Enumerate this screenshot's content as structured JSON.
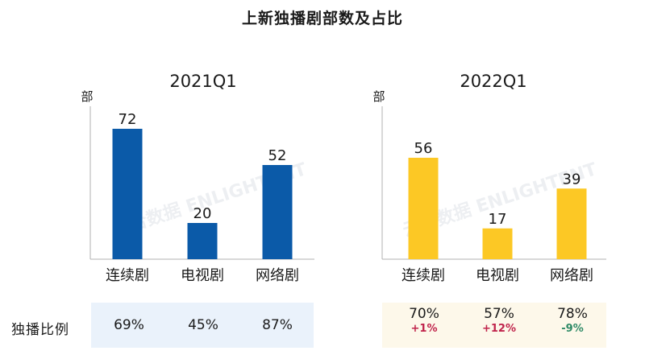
{
  "title": "上新独播剧部数及占比",
  "unit": "部",
  "ratio_label": "独播比例",
  "colors": {
    "q1_2021": "#0b5aa8",
    "q1_2022": "#fcc825",
    "positive": "#c0234b",
    "negative": "#2e8a66",
    "axis": "#b0b0b0"
  },
  "watermark": "云合数据 ENLIGHTENT",
  "chart_data": [
    {
      "type": "bar",
      "title": "2021Q1",
      "ylabel": "部",
      "categories": [
        "连续剧",
        "电视剧",
        "网络剧"
      ],
      "values": [
        72,
        20,
        52
      ],
      "ylim": [
        0,
        80
      ],
      "color": "#0b5aa8"
    },
    {
      "type": "bar",
      "title": "2022Q1",
      "ylabel": "部",
      "categories": [
        "连续剧",
        "电视剧",
        "网络剧"
      ],
      "values": [
        56,
        17,
        39
      ],
      "ylim": [
        0,
        80
      ],
      "color": "#fcc825"
    }
  ],
  "ratios_2021": [
    {
      "value": "69%"
    },
    {
      "value": "45%"
    },
    {
      "value": "87%"
    }
  ],
  "ratios_2022": [
    {
      "value": "70%",
      "change": "+1%"
    },
    {
      "value": "57%",
      "change": "+12%"
    },
    {
      "value": "78%",
      "change": "-9%"
    }
  ]
}
